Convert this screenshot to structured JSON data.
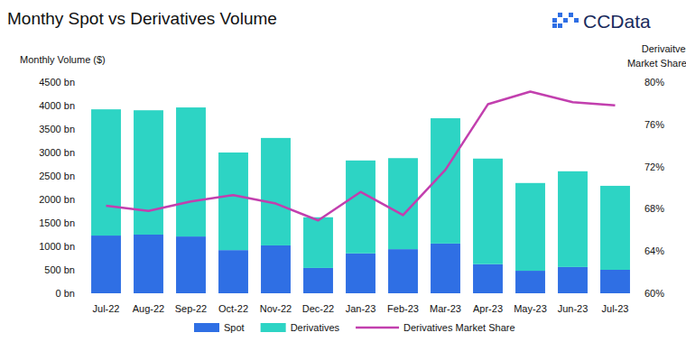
{
  "chart_data": {
    "type": "bar",
    "title": "Monthy Spot vs Derivatives Volume",
    "logo": "CCData",
    "y_label": "Monthly Volume ($)",
    "y2_label": [
      "Derivaitves",
      "Market Share (%)"
    ],
    "stacked": true,
    "legend": "bottom",
    "grid": false,
    "categories": [
      "Jul-22",
      "Aug-22",
      "Sep-22",
      "Oct-22",
      "Nov-22",
      "Dec-22",
      "Jan-23",
      "Feb-23",
      "Mar-23",
      "Apr-23",
      "May-23",
      "Jun-23",
      "Jul-23"
    ],
    "series": [
      {
        "name": "Spot",
        "color": "#2f6fe4",
        "values": [
          1230,
          1250,
          1210,
          920,
          1020,
          540,
          850,
          940,
          1060,
          620,
          480,
          560,
          500
        ]
      },
      {
        "name": "Derivatives",
        "color": "#2dd4c4",
        "values": [
          2690,
          2650,
          2750,
          2080,
          2290,
          1080,
          1980,
          1940,
          2670,
          2250,
          1870,
          2040,
          1790
        ]
      },
      {
        "name": "Derivatives Market Share",
        "type": "line",
        "axis": "y2",
        "color": "#c23fae",
        "values": [
          68.3,
          67.8,
          68.7,
          69.3,
          68.5,
          66.9,
          69.6,
          67.4,
          71.7,
          77.9,
          79.1,
          78.1,
          77.8
        ]
      }
    ],
    "ylim": [
      0,
      4500
    ],
    "yticks": [
      {
        "value": 0,
        "label": "0 bn"
      },
      {
        "value": 500,
        "label": "500 bn"
      },
      {
        "value": 1000,
        "label": "1000 bn"
      },
      {
        "value": 1500,
        "label": "1500 bn"
      },
      {
        "value": 2000,
        "label": "2000 bn"
      },
      {
        "value": 2500,
        "label": "2500 bn"
      },
      {
        "value": 3000,
        "label": "3000 bn"
      },
      {
        "value": 3500,
        "label": "3500 bn"
      },
      {
        "value": 4000,
        "label": "4000 bn"
      },
      {
        "value": 4500,
        "label": "4500 bn"
      }
    ],
    "y2lim": [
      60,
      80
    ],
    "y2ticks": [
      {
        "value": 60,
        "label": "60%"
      },
      {
        "value": 64,
        "label": "64%"
      },
      {
        "value": 68,
        "label": "68%"
      },
      {
        "value": 72,
        "label": "72%"
      },
      {
        "value": 76,
        "label": "76%"
      },
      {
        "value": 80,
        "label": "80%"
      }
    ]
  }
}
